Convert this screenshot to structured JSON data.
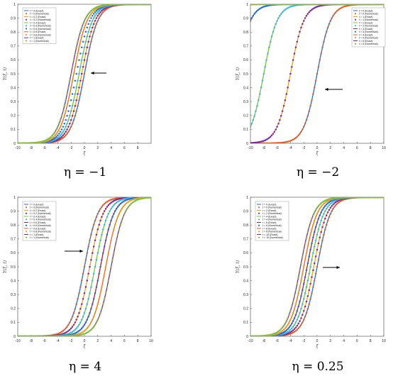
{
  "chart_data": [
    {
      "type": "line",
      "caption": "η = −1",
      "xlabel": "ξ",
      "ylabel": "Y(ξ, t)",
      "xlim": [
        -10,
        10
      ],
      "ylim": [
        0,
        1
      ],
      "xticks": [
        "-10",
        "-8",
        "-6",
        "-4",
        "-2",
        "0",
        "2",
        "4",
        "6",
        "8"
      ],
      "yticks": [
        "0",
        "0.1",
        "0.2",
        "0.3",
        "0.4",
        "0.5",
        "0.6",
        "0.7",
        "0.8",
        "0.9",
        "1"
      ],
      "legend_placement": "top-left",
      "arrow": "pointing left toward curves",
      "series": [
        {
          "name": "t = 0 (Exact)",
          "marker": "line",
          "color": "#1f6fd1",
          "center": 0.0
        },
        {
          "name": "t = 0 (Numerical)",
          "marker": "dot",
          "color": "#e0622a",
          "center": 0.0
        },
        {
          "name": "t = 0.2 (Exact)",
          "marker": "line",
          "color": "#e6a12a",
          "center": -0.4
        },
        {
          "name": "t = 0.2 (Numerical)",
          "marker": "dot",
          "color": "#7d2a99",
          "center": -0.4
        },
        {
          "name": "t = 0.4 (Exact)",
          "marker": "line",
          "color": "#7fbf3a",
          "center": -0.8
        },
        {
          "name": "t = 0.4 (Numerical)",
          "marker": "dot",
          "color": "#3fb8e0",
          "center": -0.8
        },
        {
          "name": "t = 0.6 (Numerical)",
          "marker": "dot",
          "color": "#1f6fd1",
          "center": -1.2
        },
        {
          "name": "t = 0.8 (Exact)",
          "marker": "line",
          "color": "#e0622a",
          "center": -1.6
        },
        {
          "name": "t = 0.8 (Numerical)",
          "marker": "dot",
          "color": "#e6a12a",
          "center": -1.6
        },
        {
          "name": "t = 1 (Exact)",
          "marker": "line",
          "color": "#7d2a99",
          "center": -2.0
        },
        {
          "name": "t = 1 (Numerical)",
          "marker": "dot",
          "color": "#7fbf3a",
          "center": -2.0
        }
      ]
    },
    {
      "type": "line",
      "caption": "η = −2",
      "xlabel": "ξ",
      "ylabel": "Y(ξ, t)",
      "xlim": [
        -10,
        10
      ],
      "ylim": [
        0,
        1
      ],
      "xticks": [
        "-10",
        "-8",
        "-6",
        "-4",
        "-2",
        "0",
        "2",
        "4",
        "6",
        "8",
        "10"
      ],
      "yticks": [
        "0",
        "0.1",
        "0.2",
        "0.3",
        "0.4",
        "0.5",
        "0.6",
        "0.7",
        "0.8",
        "0.9",
        "1"
      ],
      "legend_placement": "top-right",
      "arrow": "pointing left toward curves",
      "series": [
        {
          "name": "t = 0 (Exact)",
          "marker": "line",
          "color": "#1f6fd1",
          "center": 0.0
        },
        {
          "name": "t = 0 (Numerical)",
          "marker": "dot",
          "color": "#e0622a",
          "center": 0.0
        },
        {
          "name": "t = 1 (Exact)",
          "marker": "line",
          "color": "#e6a12a",
          "center": -4.0
        },
        {
          "name": "t = 1 (Numerical)",
          "marker": "dot",
          "color": "#7d2a99",
          "center": -4.0
        },
        {
          "name": "t = 2 (Exact)",
          "marker": "line",
          "color": "#7fbf3a",
          "center": -8.0
        },
        {
          "name": "t = 2 (Numerical)",
          "marker": "dot",
          "color": "#3fb8e0",
          "center": -8.0
        },
        {
          "name": "t = 3 (Exact)",
          "marker": "line",
          "color": "#9b2a2a",
          "center": -12.0
        },
        {
          "name": "t = 3 (Numerical)",
          "marker": "dot",
          "color": "#1f6fd1",
          "center": -12.0
        },
        {
          "name": "t = 4 (Exact)",
          "marker": "line",
          "color": "#e0622a",
          "center": -16.0
        },
        {
          "name": "t = 4 (Numerical)",
          "marker": "dot",
          "color": "#e6a12a",
          "center": -16.0
        },
        {
          "name": "t = 5 (Exact)",
          "marker": "line",
          "color": "#7d2a99",
          "center": -20.0
        },
        {
          "name": "t = 5 (Numerical)",
          "marker": "dot",
          "color": "#7fbf3a",
          "center": -20.0
        }
      ]
    },
    {
      "type": "line",
      "caption": "η = 4",
      "xlabel": "ξ",
      "ylabel": "Y(ξ, t)",
      "xlim": [
        -10,
        10
      ],
      "ylim": [
        0,
        1
      ],
      "xticks": [
        "-10",
        "-8",
        "-6",
        "-4",
        "-2",
        "0",
        "2",
        "4",
        "6",
        "8",
        "10"
      ],
      "yticks": [
        "0",
        "0.1",
        "0.2",
        "0.3",
        "0.4",
        "0.5",
        "0.6",
        "0.7",
        "0.8",
        "0.9",
        "1"
      ],
      "legend_placement": "top-left",
      "arrow": "pointing right toward curves",
      "series": [
        {
          "name": "t = 0 (Exact)",
          "marker": "line",
          "color": "#1f6fd1",
          "center": 0.0
        },
        {
          "name": "t = 0 (Numerical)",
          "marker": "dot",
          "color": "#e0622a",
          "center": 0.0
        },
        {
          "name": "t = 0.2 (Exact)",
          "marker": "line",
          "color": "#e6a12a",
          "center": 0.8
        },
        {
          "name": "t = 0.2 (Numerical)",
          "marker": "dot",
          "color": "#7d2a99",
          "center": 0.8
        },
        {
          "name": "t = 0.4 (Exact)",
          "marker": "line",
          "color": "#7fbf3a",
          "center": 1.6
        },
        {
          "name": "t = 0.4 (Numerical)",
          "marker": "dot",
          "color": "#3fb8e0",
          "center": 1.6
        },
        {
          "name": "t = 0.6 (Exact)",
          "marker": "line",
          "color": "#9b2a2a",
          "center": 2.4
        },
        {
          "name": "t = 0.6 (Numerical)",
          "marker": "dot",
          "color": "#1f6fd1",
          "center": 2.4
        },
        {
          "name": "t = 0.8 (Exact)",
          "marker": "line",
          "color": "#e0622a",
          "center": 3.2
        },
        {
          "name": "t = 0.8 (Numerical)",
          "marker": "dot",
          "color": "#e6a12a",
          "center": 3.2
        },
        {
          "name": "t = 1 (Exact)",
          "marker": "line",
          "color": "#7d2a99",
          "center": 4.0
        },
        {
          "name": "t = 1 (Numerical)",
          "marker": "dot",
          "color": "#7fbf3a",
          "center": 4.0
        }
      ]
    },
    {
      "type": "line",
      "caption": "η = 0.25",
      "xlabel": "ξ",
      "ylabel": "Y(ξ, t)",
      "xlim": [
        -10,
        10
      ],
      "ylim": [
        0,
        1
      ],
      "xticks": [
        "-10",
        "-8",
        "-6",
        "-4",
        "-2",
        "0",
        "2",
        "4",
        "6",
        "8",
        "10"
      ],
      "yticks": [
        "0",
        "0.1",
        "0.2",
        "0.3",
        "0.4",
        "0.5",
        "0.6",
        "0.7",
        "0.8",
        "0.9",
        "1"
      ],
      "legend_placement": "top-left",
      "arrow": "pointing right toward curves",
      "series": [
        {
          "name": "t = 0 (Exact)",
          "marker": "line",
          "color": "#1f6fd1",
          "center": 0.0
        },
        {
          "name": "t = 0 (Numerical)",
          "marker": "dot",
          "color": "#e0622a",
          "center": 0.0
        },
        {
          "name": "t = 2 (Exact)",
          "marker": "line",
          "color": "#e6a12a",
          "center": -0.5
        },
        {
          "name": "t = 2 (Numerical)",
          "marker": "dot",
          "color": "#7d2a99",
          "center": -0.5
        },
        {
          "name": "t = 4 (Exact)",
          "marker": "line",
          "color": "#7fbf3a",
          "center": -1.0
        },
        {
          "name": "t = 4 (Numerical)",
          "marker": "dot",
          "color": "#3fb8e0",
          "center": -1.0
        },
        {
          "name": "t = 6 (Exact)",
          "marker": "line",
          "color": "#9b2a2a",
          "center": -1.5
        },
        {
          "name": "t = 6 (Numerical)",
          "marker": "dot",
          "color": "#1f6fd1",
          "center": -1.5
        },
        {
          "name": "t = 8 (Exact)",
          "marker": "line",
          "color": "#e0622a",
          "center": -2.0
        },
        {
          "name": "t = 8 (Numerical)",
          "marker": "dot",
          "color": "#e6a12a",
          "center": -2.0
        },
        {
          "name": "t = 10 (Exact)",
          "marker": "line",
          "color": "#7d2a99",
          "center": -2.5
        },
        {
          "name": "t = 10 (Numerical)",
          "marker": "dot",
          "color": "#7fbf3a",
          "center": -2.5
        }
      ]
    }
  ]
}
